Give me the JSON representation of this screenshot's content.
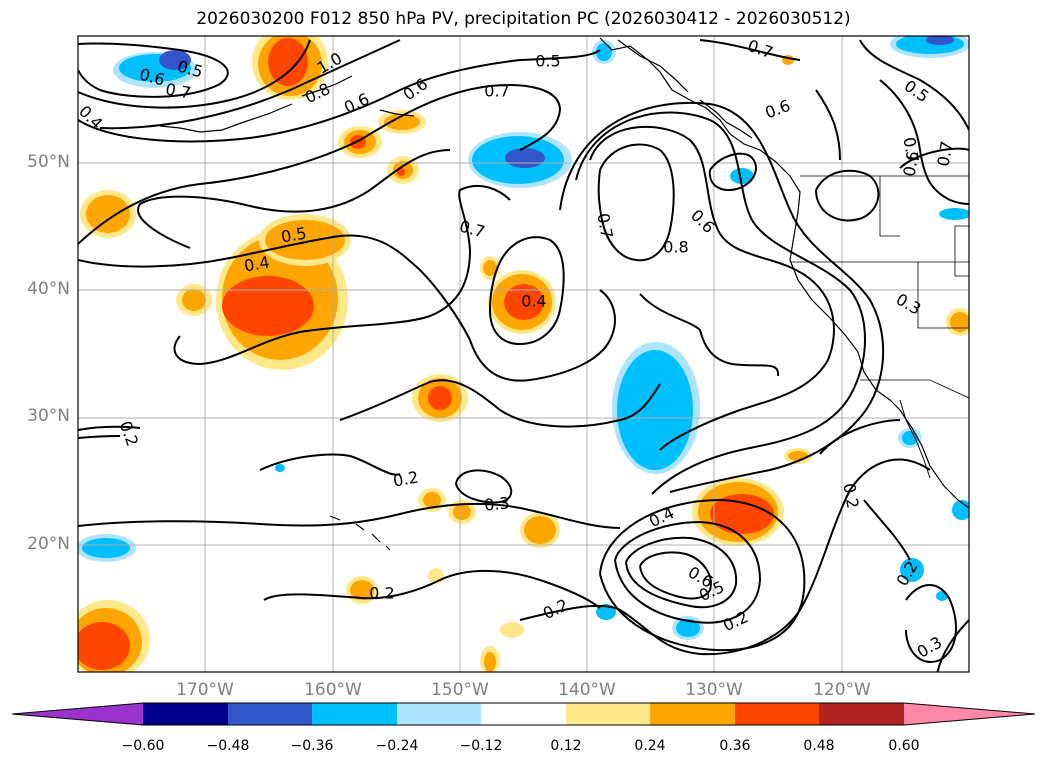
{
  "title": "2026030200 F012 850 hPa PV, precipitation PC (2026030412 - 2026030512)",
  "axes": {
    "lat_labels": [
      "50°N",
      "40°N",
      "30°N",
      "20°N"
    ],
    "lon_labels": [
      "170°W",
      "160°W",
      "150°W",
      "140°W",
      "130°W",
      "120°W"
    ]
  },
  "colorbar": {
    "ticks": [
      "−0.60",
      "−0.48",
      "−0.36",
      "−0.24",
      "−0.12",
      "0.12",
      "0.24",
      "0.36",
      "0.48",
      "0.60"
    ],
    "colors": [
      "#9933cc",
      "#00008b",
      "#3355cc",
      "#00bfff",
      "#aee4ff",
      "#ffffff",
      "#ffe88a",
      "#ffa500",
      "#ff4500",
      "#b22222",
      "#ff88aa"
    ]
  },
  "contour_labels": [
    {
      "text": "0.6"
    },
    {
      "text": "0.5"
    },
    {
      "text": "0.7"
    },
    {
      "text": "1.0"
    },
    {
      "text": "0.8"
    },
    {
      "text": "0.6"
    },
    {
      "text": "0.6"
    },
    {
      "text": "0.5"
    },
    {
      "text": "0.7"
    },
    {
      "text": "0.7"
    },
    {
      "text": "0.4"
    },
    {
      "text": "0.5"
    },
    {
      "text": "0.6"
    },
    {
      "text": "0.7"
    },
    {
      "text": "0.7"
    },
    {
      "text": "0.7"
    },
    {
      "text": "0.6"
    },
    {
      "text": "0.8"
    },
    {
      "text": "0.5"
    },
    {
      "text": "0.4"
    },
    {
      "text": "0.4"
    },
    {
      "text": "0.6"
    },
    {
      "text": "0.7"
    },
    {
      "text": "0.3"
    },
    {
      "text": "0.2"
    },
    {
      "text": "0.2"
    },
    {
      "text": "0.3"
    },
    {
      "text": "0.4"
    },
    {
      "text": "0.6"
    },
    {
      "text": "0.5"
    },
    {
      "text": "0.2"
    },
    {
      "text": "0.2"
    },
    {
      "text": "0.2"
    },
    {
      "text": "0.2"
    },
    {
      "text": "0.2"
    },
    {
      "text": "0.3"
    }
  ]
}
